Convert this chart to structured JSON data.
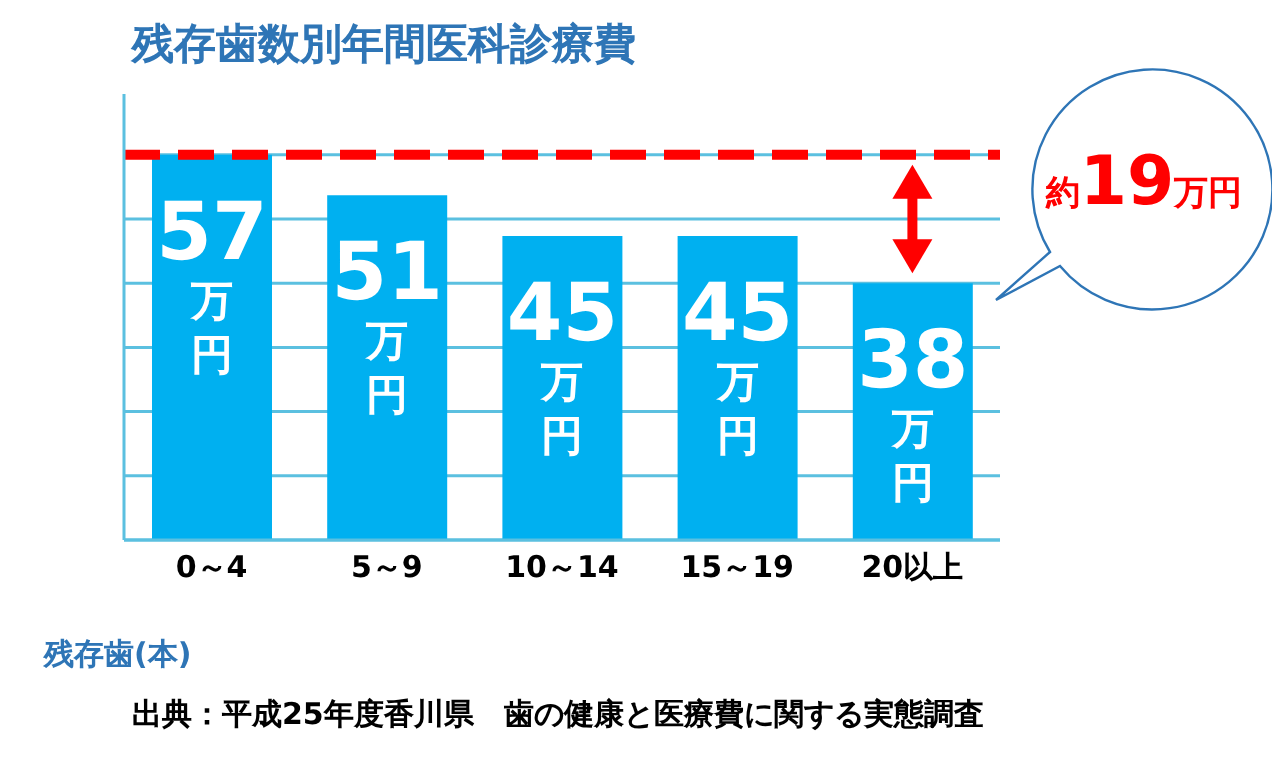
{
  "chart_data": {
    "type": "bar",
    "title": "残存歯数別年間医科診療費",
    "xlabel": "残存歯(本)",
    "categories": [
      "0～4",
      "5～9",
      "10～14",
      "15～19",
      "20以上"
    ],
    "values": [
      57,
      51,
      45,
      45,
      38
    ],
    "color": "#00b0f0",
    "value_labels": [
      "57万円",
      "51万円",
      "45万円",
      "45万円",
      "38万円"
    ],
    "ylim": [
      0,
      66
    ],
    "yticks": [
      {
        "value": 0,
        "label": null
      },
      {
        "value": 9.5,
        "label": null
      },
      {
        "value": 19,
        "label": null
      },
      {
        "value": 28.5,
        "label": null
      },
      {
        "value": 38,
        "label": null
      },
      {
        "value": 47.5,
        "label": null
      },
      {
        "value": 57,
        "label": null
      }
    ],
    "tick_labels": "x",
    "grid": "y",
    "legend": false,
    "ref_lines": [
      {
        "axis": "y",
        "value": 57,
        "color": "#ff0000",
        "line_style": "dashed"
      }
    ],
    "annotations": [
      "約19万円",
      "出典：平成25年度香川県　歯の健康と医療費に関する実態調査"
    ]
  }
}
